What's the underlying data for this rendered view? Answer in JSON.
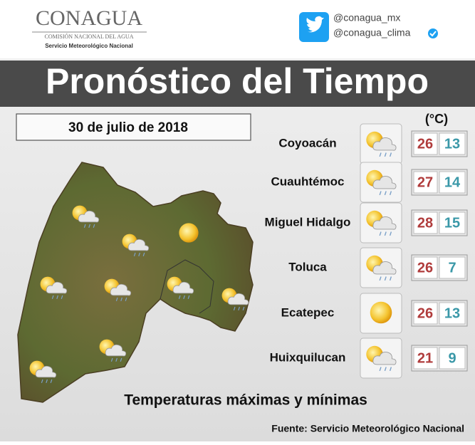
{
  "header": {
    "logo": "CONAGUA",
    "agency": "COMISIÓN NACIONAL DEL AGUA",
    "service": "Servicio Meteorológico Nacional",
    "twitter": [
      "@conagua_mx",
      "@conagua_clima"
    ]
  },
  "title": "Pronóstico del Tiempo",
  "date": "30 de julio de 2018",
  "unit": "(°C)",
  "forecast": [
    {
      "city": "Coyoacán",
      "max": 26,
      "min": 13
    },
    {
      "city": "Cuauhtémoc",
      "max": 27,
      "min": 14
    },
    {
      "city": "Miguel Hidalgo",
      "max": 28,
      "min": 15
    },
    {
      "city": "Toluca",
      "max": 26,
      "min": 7
    },
    {
      "city": "Ecatepec",
      "max": 26,
      "min": 13
    },
    {
      "city": "Huixquilucan",
      "max": 21,
      "min": 9
    }
  ],
  "caption": "Temperaturas máximas y mínimas",
  "source": "Fuente: Servicio Meteorológico Nacional"
}
